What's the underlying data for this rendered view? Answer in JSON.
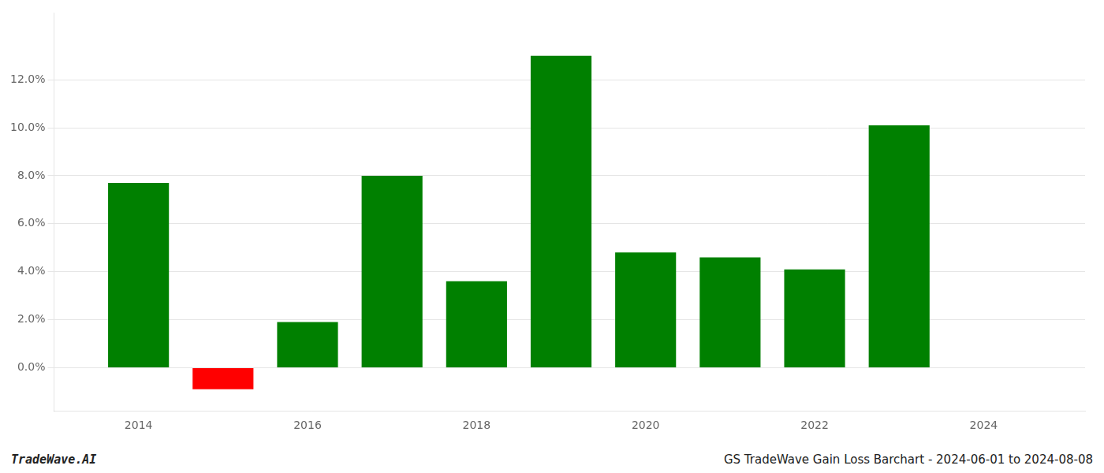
{
  "chart_data": {
    "type": "bar",
    "x": [
      2014,
      2015,
      2016,
      2017,
      2018,
      2019,
      2020,
      2021,
      2022,
      2023
    ],
    "values": [
      0.077,
      -0.009,
      0.019,
      0.08,
      0.036,
      0.13,
      0.048,
      0.046,
      0.041,
      0.101
    ],
    "colors": [
      "#008000",
      "#ff0000",
      "#008000",
      "#008000",
      "#008000",
      "#008000",
      "#008000",
      "#008000",
      "#008000",
      "#008000"
    ],
    "xlim": [
      2013.0,
      2025.2
    ],
    "xticks": [
      2014,
      2016,
      2018,
      2020,
      2022,
      2024
    ],
    "ylim": [
      -0.018,
      0.148
    ],
    "yticks": [
      {
        "value": 0.0,
        "label": "0.0%"
      },
      {
        "value": 0.02,
        "label": "2.0%"
      },
      {
        "value": 0.04,
        "label": "4.0%"
      },
      {
        "value": 0.06,
        "label": "6.0%"
      },
      {
        "value": 0.08,
        "label": "8.0%"
      },
      {
        "value": 0.1,
        "label": "10.0%"
      },
      {
        "value": 0.12,
        "label": "12.0%"
      }
    ],
    "grid": true,
    "annotations": [
      "TradeWave.AI",
      "GS TradeWave Gain Loss Barchart - 2024-06-01 to 2024-08-08"
    ]
  }
}
